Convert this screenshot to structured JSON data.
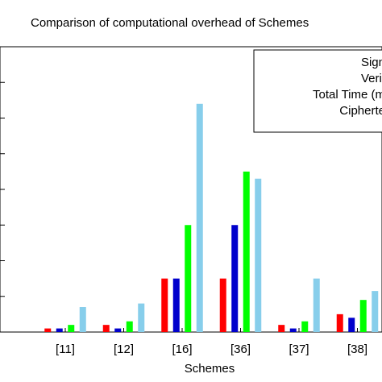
{
  "chart_data": {
    "type": "bar",
    "title": "Comparison of computational overhead of Schemes",
    "xlabel": "Schemes",
    "ylabel": "",
    "categories": [
      "[11]",
      "[12]",
      "[16]",
      "[36]",
      "[37]",
      "[38]"
    ],
    "series": [
      {
        "name": "Sign",
        "color": "#ff0000",
        "values": [
          0.1,
          0.2,
          1.5,
          1.5,
          0.2,
          0.5
        ]
      },
      {
        "name": "Verif",
        "color": "#0000cc",
        "values": [
          0.1,
          0.1,
          1.5,
          3.0,
          0.1,
          0.4
        ]
      },
      {
        "name": "Total Time (m",
        "color": "#00ff00",
        "values": [
          0.2,
          0.3,
          3.0,
          4.5,
          0.3,
          0.9
        ]
      },
      {
        "name": "Cipherte",
        "color": "#87ceeb",
        "values": [
          0.7,
          0.8,
          6.4,
          4.3,
          1.5,
          1.15
        ]
      }
    ],
    "ylim": [
      0,
      8
    ],
    "grid": false,
    "legend_position": "top-right"
  }
}
